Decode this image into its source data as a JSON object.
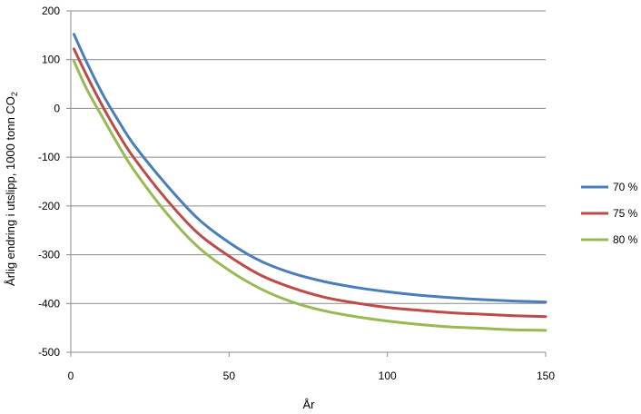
{
  "chart_data": {
    "type": "line",
    "xlabel": "År",
    "ylabel": "Årlig endring i utslipp, 1000 tonn CO",
    "ylabel_sub": "2",
    "xlim": [
      0,
      150
    ],
    "ylim": [
      -500,
      200
    ],
    "x_ticks": [
      0,
      50,
      100,
      150
    ],
    "y_ticks": [
      200,
      100,
      0,
      -100,
      -200,
      -300,
      -400,
      -500
    ],
    "grid": "horizontal",
    "legend_position": "right",
    "x": [
      1,
      5,
      10,
      15,
      20,
      30,
      40,
      50,
      60,
      70,
      80,
      90,
      100,
      110,
      120,
      130,
      140,
      150
    ],
    "series": [
      {
        "name": "70 %",
        "color": "#4A7EBB",
        "values": [
          152,
          95,
          30,
          -25,
          -75,
          -155,
          -225,
          -275,
          -313,
          -338,
          -355,
          -367,
          -376,
          -383,
          -388,
          -392,
          -395,
          -397
        ]
      },
      {
        "name": "75 %",
        "color": "#BE4B48",
        "values": [
          122,
          68,
          5,
          -52,
          -102,
          -185,
          -255,
          -303,
          -342,
          -368,
          -387,
          -399,
          -408,
          -414,
          -419,
          -422,
          -425,
          -427
        ]
      },
      {
        "name": "80 %",
        "color": "#98B954",
        "values": [
          97,
          40,
          -18,
          -75,
          -127,
          -213,
          -283,
          -332,
          -370,
          -397,
          -415,
          -427,
          -436,
          -443,
          -448,
          -451,
          -454,
          -455
        ]
      }
    ]
  }
}
